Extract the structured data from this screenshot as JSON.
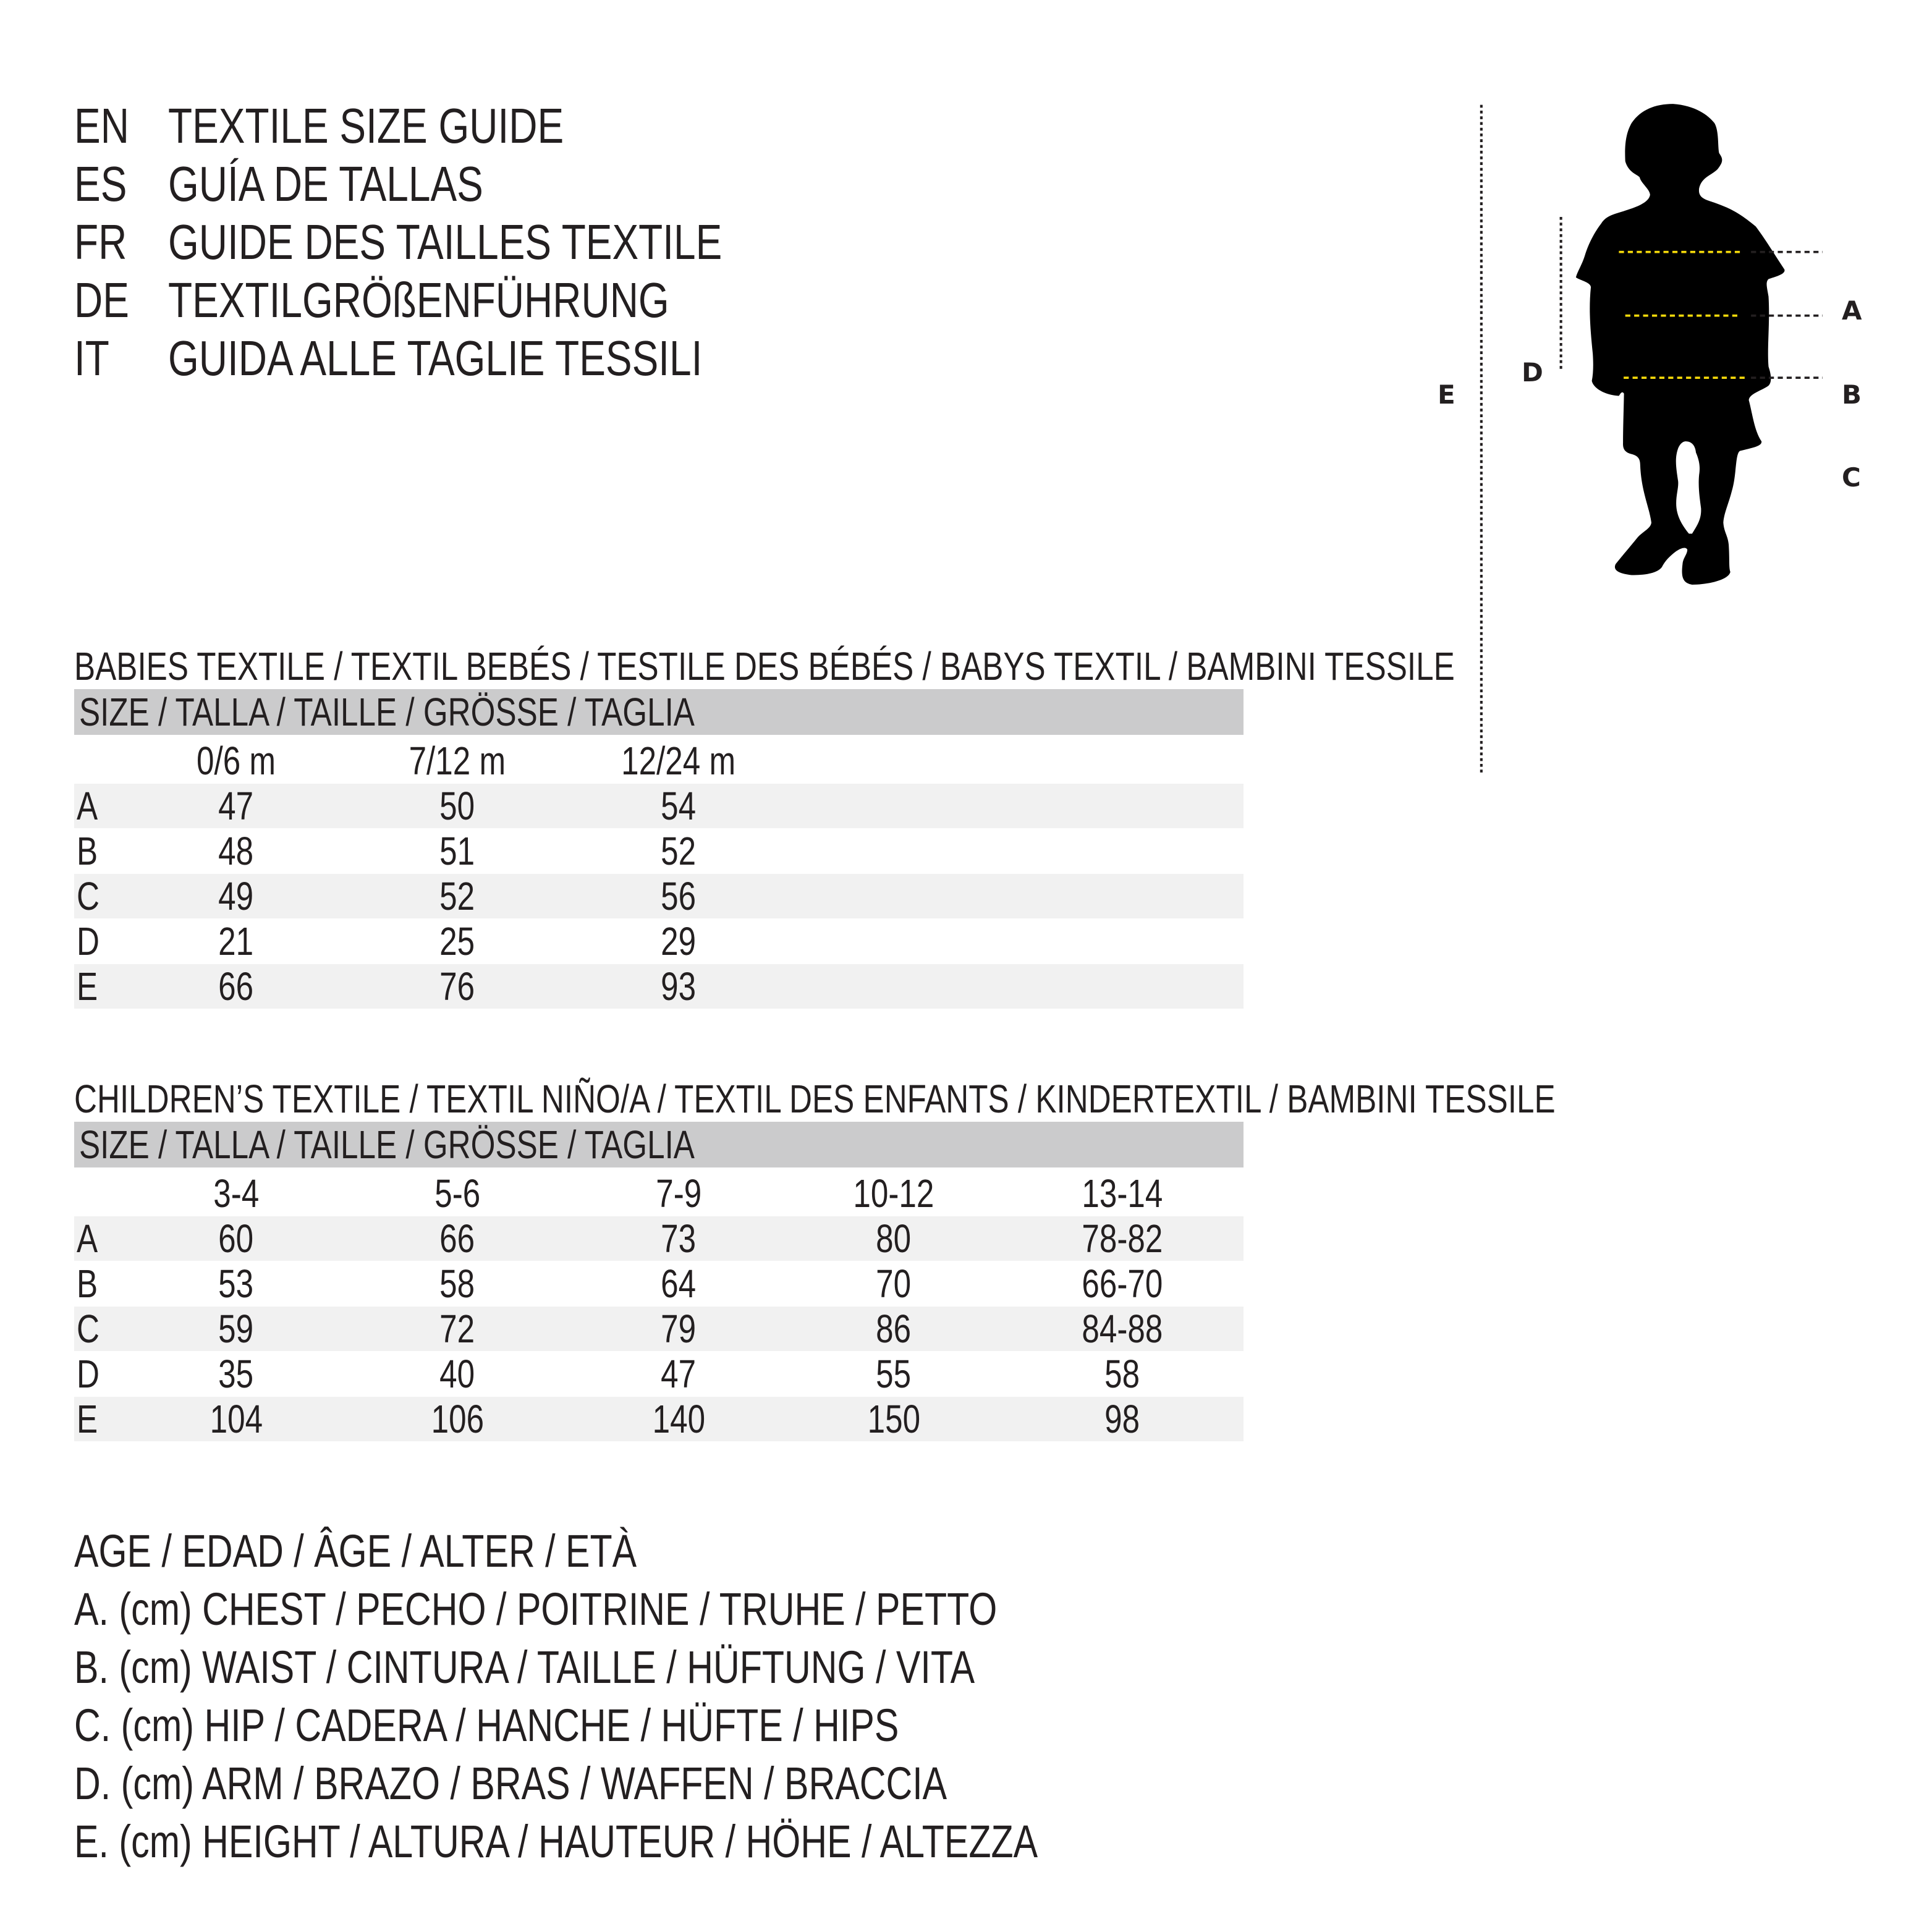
{
  "header": [
    {
      "code": "EN",
      "text": "TEXTILE SIZE GUIDE"
    },
    {
      "code": "ES",
      "text": "GUÍA DE TALLAS"
    },
    {
      "code": "FR",
      "text": "GUIDE DES TAILLES TEXTILE"
    },
    {
      "code": "DE",
      "text": "TEXTILGRÖßENFÜHRUNG"
    },
    {
      "code": "IT",
      "text": "GUIDA ALLE TAGLIE TESSILI"
    }
  ],
  "babies": {
    "title": "BABIES TEXTILE / TEXTIL BEBÉS / TESTILE DES BÉBÉS / BABYS TEXTIL / BAMBINI TESSILE",
    "size_header": "SIZE / TALLA / TAILLE / GRÖSSE / TAGLIA",
    "columns": [
      "0/6 m",
      "7/12 m",
      "12/24 m"
    ],
    "rows": [
      {
        "label": "A",
        "values": [
          "47",
          "50",
          "54"
        ]
      },
      {
        "label": "B",
        "values": [
          "48",
          "51",
          "52"
        ]
      },
      {
        "label": "C",
        "values": [
          "49",
          "52",
          "56"
        ]
      },
      {
        "label": "D",
        "values": [
          "21",
          "25",
          "29"
        ]
      },
      {
        "label": "E",
        "values": [
          "66",
          "76",
          "93"
        ]
      }
    ]
  },
  "children": {
    "title": "CHILDREN’S TEXTILE / TEXTIL NIÑO/A / TEXTIL DES ENFANTS / KINDERTEXTIL / BAMBINI TESSILE",
    "size_header": "SIZE / TALLA / TAILLE / GRÖSSE / TAGLIA",
    "columns": [
      "3-4",
      "5-6",
      "7-9",
      "10-12",
      "13-14"
    ],
    "rows": [
      {
        "label": "A",
        "values": [
          "60",
          "66",
          "73",
          "80",
          "78-82"
        ]
      },
      {
        "label": "B",
        "values": [
          "53",
          "58",
          "64",
          "70",
          "66-70"
        ]
      },
      {
        "label": "C",
        "values": [
          "59",
          "72",
          "79",
          "86",
          "84-88"
        ]
      },
      {
        "label": "D",
        "values": [
          "35",
          "40",
          "47",
          "55",
          "58"
        ]
      },
      {
        "label": "E",
        "values": [
          "104",
          "106",
          "140",
          "150",
          "98"
        ]
      }
    ]
  },
  "legend": [
    "AGE / EDAD / ÂGE / ALTER / ETÀ",
    "A. (cm) CHEST / PECHO / POITRINE / TRUHE / PETTO",
    "B. (cm) WAIST / CINTURA / TAILLE / HÜFTUNG / VITA",
    "C. (cm) HIP / CADERA / HANCHE / HÜFTE / HIPS",
    "D. (cm) ARM / BRAZO / BRAS / WAFFEN / BRACCIA",
    "E. (cm) HEIGHT / ALTURA / HAUTEUR / HÖHE / ALTEZZA"
  ],
  "figure": {
    "labels": {
      "A": "A",
      "B": "B",
      "C": "C",
      "D": "D",
      "E": "E"
    },
    "colors": {
      "measure_line": "#f5d90a",
      "silhouette": "#000000",
      "guide": "#231f20"
    }
  }
}
